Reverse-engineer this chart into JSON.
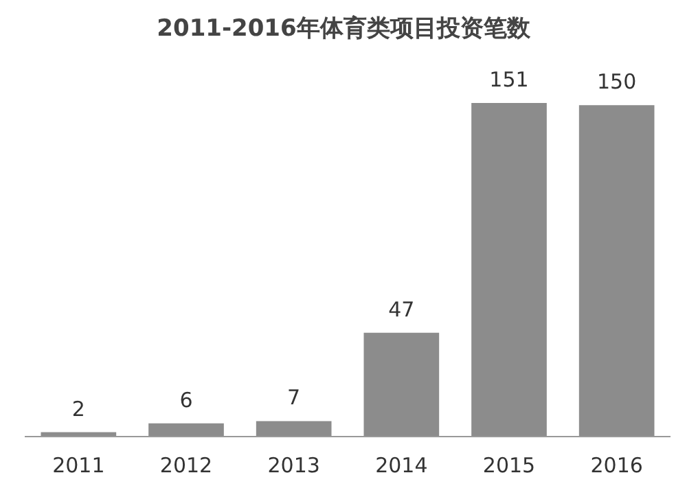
{
  "chart_data": {
    "type": "bar",
    "title": "2011-2016年体育类项目投资笔数",
    "categories": [
      "2011",
      "2012",
      "2013",
      "2014",
      "2015",
      "2016"
    ],
    "values": [
      2,
      6,
      7,
      47,
      151,
      150
    ],
    "color": "#8c8c8c",
    "data_labels": true
  }
}
